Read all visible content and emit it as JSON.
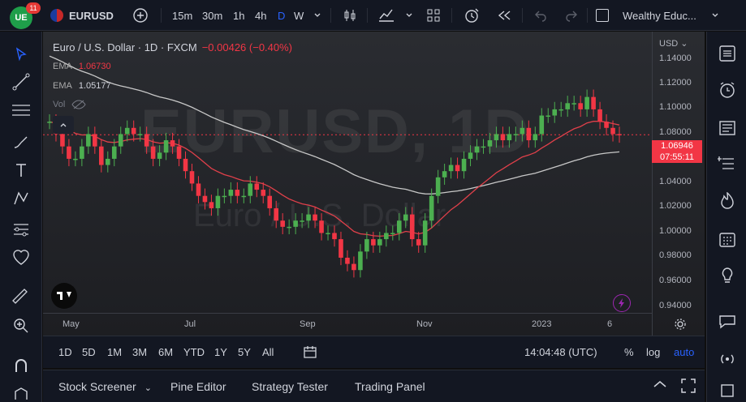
{
  "topbar": {
    "badge_count": "11",
    "logo_text": "UE",
    "symbol": "EURUSD",
    "intervals": [
      "15m",
      "30m",
      "1h",
      "4h",
      "D",
      "W"
    ],
    "active_interval": "D",
    "layout_name": "Wealthy Educ..."
  },
  "legend": {
    "title": "Euro / U.S. Dollar · 1D · FXCM",
    "change": "−0.00426 (−0.40%)",
    "ema1_label": "EMA",
    "ema1_value": "1.06730",
    "ema2_label": "EMA",
    "ema2_value": "1.05177",
    "vol_label": "Vol"
  },
  "watermark": {
    "symbol": "EURUSD, 1D",
    "name": "Euro / U.S. Dollar"
  },
  "yaxis": {
    "currency": "USD",
    "ticks": [
      "1.14000",
      "1.12000",
      "1.10000",
      "1.08000",
      "1.06000",
      "1.04000",
      "1.02000",
      "1.00000",
      "0.98000",
      "0.96000",
      "0.94000"
    ]
  },
  "price_label": {
    "price": "1.06946",
    "countdown": "07:55:11"
  },
  "xaxis": {
    "ticks": [
      "May",
      "Jul",
      "Sep",
      "Nov",
      "2023",
      "6"
    ]
  },
  "range_bar": {
    "ranges": [
      "1D",
      "5D",
      "1M",
      "3M",
      "6M",
      "YTD",
      "1Y",
      "5Y",
      "All"
    ],
    "clock": "14:04:48 (UTC)",
    "percent": "%",
    "log": "log",
    "auto": "auto"
  },
  "bottom_panel": {
    "tabs": [
      "Stock Screener",
      "Pine Editor",
      "Strategy Tester",
      "Trading Panel"
    ]
  },
  "colors": {
    "up": "#26a69a",
    "up_bright": "#4caf50",
    "down": "#f23645",
    "ema_fast": "#e0404a",
    "ema_slow": "#c8c8c8",
    "accent": "#2962ff"
  },
  "chart_data": {
    "type": "candlestick",
    "title": "Euro / U.S. Dollar · 1D · FXCM",
    "ylim": [
      0.93,
      1.145
    ],
    "x": [
      "May",
      "Jul",
      "Sep",
      "Nov",
      "2023",
      "6"
    ],
    "closes_approx": [
      1.08,
      1.07,
      1.06,
      1.05,
      1.05,
      1.06,
      1.07,
      1.06,
      1.045,
      1.05,
      1.06,
      1.07,
      1.075,
      1.07,
      1.07,
      1.06,
      1.05,
      1.055,
      1.065,
      1.06,
      1.05,
      1.04,
      1.03,
      1.02,
      1.015,
      1.01,
      1.02,
      1.02,
      1.025,
      1.02,
      1.02,
      1.03,
      1.025,
      1.02,
      1.01,
      1.0,
      0.995,
      0.995,
      1.0,
      1.0,
      1.005,
      1.0,
      0.99,
      0.99,
      0.985,
      0.97,
      0.965,
      0.96,
      0.975,
      0.985,
      0.98,
      0.985,
      0.99,
      0.99,
      1.0,
      1.005,
      0.985,
      0.98,
      1.0,
      1.02,
      1.035,
      1.04,
      1.045,
      1.04,
      1.05,
      1.055,
      1.06,
      1.06,
      1.065,
      1.07,
      1.065,
      1.07,
      1.07,
      1.075,
      1.065,
      1.07,
      1.085,
      1.085,
      1.09,
      1.09,
      1.095,
      1.095,
      1.09,
      1.1,
      1.09,
      1.08,
      1.075,
      1.07,
      1.069
    ],
    "ema_fast_last": 1.0673,
    "ema_slow_last": 1.05177,
    "last_price": 1.06946
  }
}
